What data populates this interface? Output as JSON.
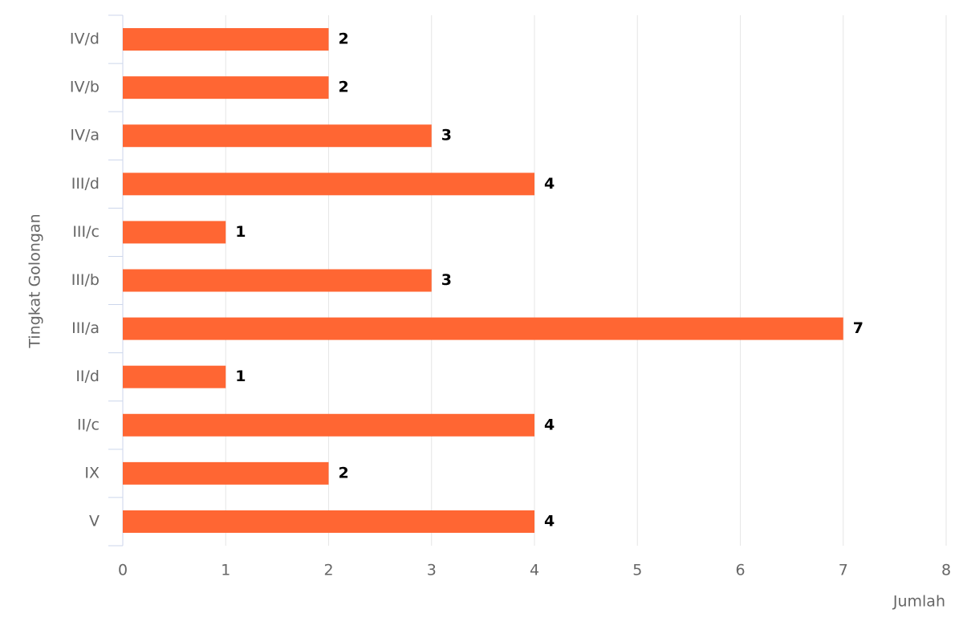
{
  "chart_data": {
    "type": "bar",
    "horizontal": true,
    "x_label": "Jumlah",
    "y_label": "Tingkat Golongan",
    "categories": [
      "IV/d",
      "IV/b",
      "IV/a",
      "III/d",
      "III/c",
      "III/b",
      "III/a",
      "II/d",
      "II/c",
      "IX",
      "V"
    ],
    "values": [
      2,
      2,
      3,
      4,
      1,
      3,
      7,
      1,
      4,
      2,
      4
    ],
    "color": "#ff6633",
    "xlim": [
      0,
      8
    ],
    "xticks": [
      0,
      1,
      2,
      3,
      4,
      5,
      6,
      7,
      8
    ],
    "grid": true
  }
}
